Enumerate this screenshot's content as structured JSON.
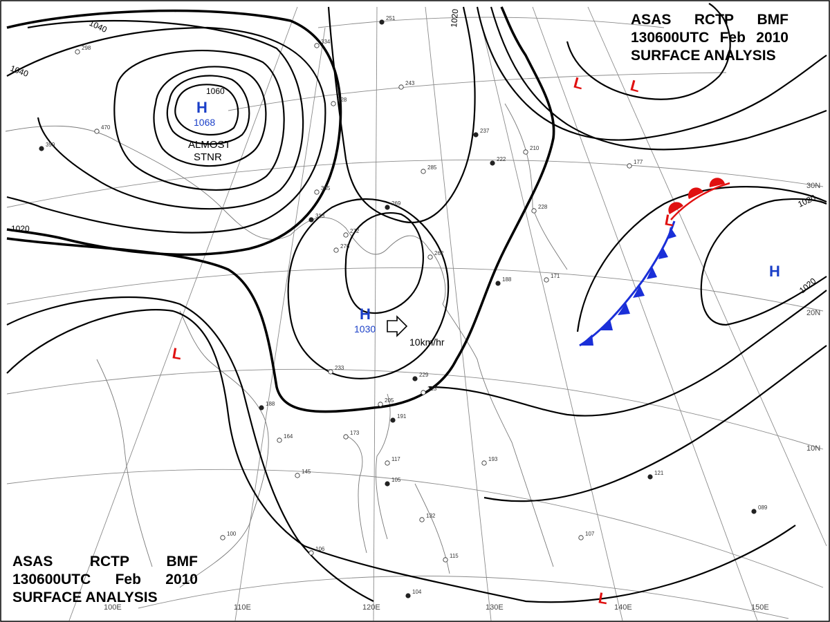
{
  "title": {
    "line1": [
      "ASAS",
      "RCTP",
      "BMF"
    ],
    "line2": [
      "130600UTC",
      "Feb",
      "2010"
    ],
    "line3": "SURFACE ANALYSIS"
  },
  "pressure_centers": [
    {
      "id": "high-north",
      "type": "H",
      "value": "1068",
      "color": "#1a3fc8"
    },
    {
      "id": "high-south",
      "type": "H",
      "value": "1030",
      "color": "#1a3fc8"
    },
    {
      "id": "high-east",
      "type": "H",
      "value": "",
      "color": "#1a3fc8"
    },
    {
      "id": "low-1",
      "type": "L",
      "value": "",
      "color": "#e01010"
    },
    {
      "id": "low-2",
      "type": "L",
      "value": "",
      "color": "#e01010"
    },
    {
      "id": "low-3",
      "type": "L",
      "value": "",
      "color": "#e01010"
    },
    {
      "id": "low-4",
      "type": "L",
      "value": "",
      "color": "#e01010"
    },
    {
      "id": "low-5",
      "type": "L",
      "value": "",
      "color": "#e01010"
    }
  ],
  "annotations": {
    "stationary_1": "ALMOST",
    "stationary_2": "STNR",
    "movement": "10km/hr"
  },
  "isobar_labels": [
    "1040",
    "1040",
    "1060",
    "1020",
    "1020",
    "1020",
    "1020"
  ],
  "grid_labels": {
    "longitudes": [
      "100E",
      "110E",
      "120E",
      "130E",
      "140E",
      "150E"
    ],
    "latitudes": [
      "30N",
      "20N",
      "10N"
    ]
  },
  "station_samples": [
    "251",
    "334",
    "243",
    "237",
    "285",
    "345",
    "313",
    "276",
    "272",
    "269",
    "262",
    "233",
    "229",
    "213",
    "205",
    "191",
    "173",
    "164",
    "188",
    "145",
    "193",
    "121",
    "107",
    "117",
    "105",
    "132",
    "115",
    "104",
    "106",
    "100",
    "089",
    "177",
    "210",
    "222",
    "228",
    "171",
    "188",
    "298",
    "470",
    "399",
    "328"
  ],
  "colors": {
    "front_cold": "#1a2fd8",
    "front_warm": "#e01010",
    "high": "#1a3fc8",
    "low": "#e01010"
  }
}
